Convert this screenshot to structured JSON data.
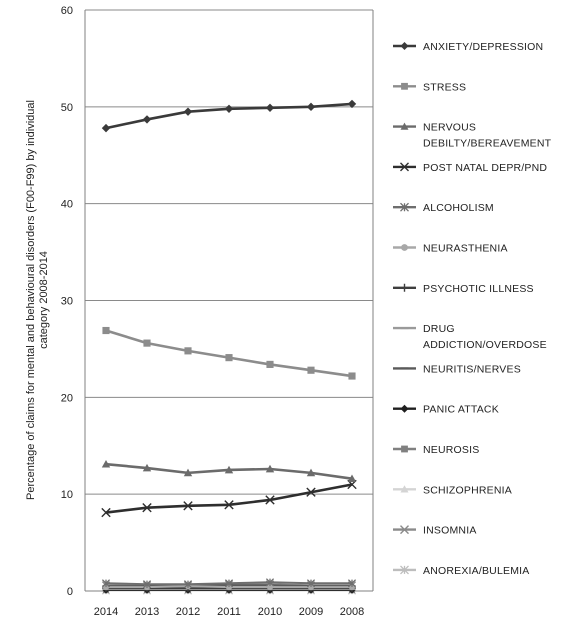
{
  "chart_data": {
    "type": "line",
    "ylabel": "Percentage of claims for mental and behavioural disorders (F00-F99) by individual category 2008-2014",
    "xlabel": "",
    "ylim": [
      0,
      60
    ],
    "yticks": [
      "0",
      "10",
      "20",
      "30",
      "40",
      "50",
      "60"
    ],
    "categories": [
      "2014",
      "2013",
      "2012",
      "2011",
      "2010",
      "2009",
      "2008"
    ],
    "grid": "horizontal",
    "legend_position": "right",
    "series": [
      {
        "name": "ANXIETY/DEPRESSION",
        "values": [
          47.8,
          48.7,
          49.5,
          49.8,
          49.9,
          50.0,
          50.3
        ],
        "color": "#3a3a3a",
        "marker": "diamond"
      },
      {
        "name": "STRESS",
        "values": [
          26.9,
          25.6,
          24.8,
          24.1,
          23.4,
          22.8,
          22.2
        ],
        "color": "#8c8c8c",
        "marker": "square"
      },
      {
        "name": "NERVOUS DEBILTY/BEREAVEMENT",
        "values": [
          13.1,
          12.7,
          12.2,
          12.5,
          12.6,
          12.2,
          11.6
        ],
        "color": "#6b6b6b",
        "marker": "triangle"
      },
      {
        "name": "POST NATAL DEPR/PND",
        "values": [
          8.1,
          8.6,
          8.8,
          8.9,
          9.4,
          10.2,
          11.0
        ],
        "color": "#2e2e2e",
        "marker": "x"
      },
      {
        "name": "ALCOHOLISM",
        "values": [
          0.8,
          0.7,
          0.7,
          0.8,
          0.9,
          0.8,
          0.8
        ],
        "color": "#6e6e6e",
        "marker": "star"
      },
      {
        "name": "NEURASTHENIA",
        "values": [
          0.4,
          0.4,
          0.5,
          0.4,
          0.4,
          0.4,
          0.4
        ],
        "color": "#a8a8a8",
        "marker": "circle"
      },
      {
        "name": "PSYCHOTIC ILLNESS",
        "values": [
          0.3,
          0.3,
          0.3,
          0.3,
          0.3,
          0.3,
          0.3
        ],
        "color": "#3e3e3e",
        "marker": "plus"
      },
      {
        "name": "DRUG ADDICTION/OVERDOSE",
        "values": [
          0.2,
          0.2,
          0.2,
          0.2,
          0.2,
          0.2,
          0.2
        ],
        "color": "#9a9a9a",
        "marker": "dash"
      },
      {
        "name": "NEURITIS/NERVES",
        "values": [
          0.5,
          0.5,
          0.6,
          0.6,
          0.6,
          0.5,
          0.5
        ],
        "color": "#5a5a5a",
        "marker": "dash"
      },
      {
        "name": "PANIC ATTACK",
        "values": [
          0.1,
          0.1,
          0.1,
          0.1,
          0.1,
          0.1,
          0.1
        ],
        "color": "#1f1f1f",
        "marker": "diamond"
      },
      {
        "name": "NEUROSIS",
        "values": [
          0.1,
          0.1,
          0.1,
          0.1,
          0.1,
          0.1,
          0.1
        ],
        "color": "#808080",
        "marker": "square"
      },
      {
        "name": "SCHIZOPHRENIA",
        "values": [
          0.05,
          0.05,
          0.05,
          0.05,
          0.05,
          0.05,
          0.05
        ],
        "color": "#d4d4d4",
        "marker": "triangle"
      },
      {
        "name": "INSOMNIA",
        "values": [
          0.6,
          0.6,
          0.6,
          0.7,
          0.7,
          0.6,
          0.6
        ],
        "color": "#8a8a8a",
        "marker": "x"
      },
      {
        "name": "ANOREXIA/BULEMIA",
        "values": [
          0.05,
          0.05,
          0.05,
          0.05,
          0.05,
          0.05,
          0.05
        ],
        "color": "#bdbdbd",
        "marker": "star"
      }
    ]
  }
}
